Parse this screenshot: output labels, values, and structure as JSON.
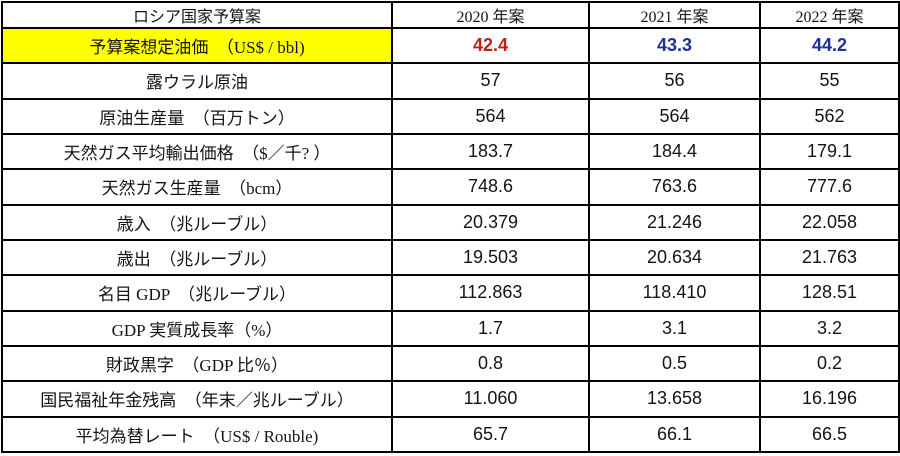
{
  "colors": {
    "highlight": "#ffff00",
    "red": "#c02018",
    "blue": "#1f2f9b",
    "border": "#000000",
    "text": "#141414"
  },
  "table": {
    "header": {
      "label": "ロシア国家予算案",
      "col_2020": "2020 年案",
      "col_2021": "2021 年案",
      "col_2022": "2022 年案"
    },
    "rows": [
      {
        "label": "予算案想定油価　（US$ / bbl)",
        "values": [
          "42.4",
          "43.3",
          "44.2"
        ],
        "highlight": true
      },
      {
        "label": "露ウラル原油",
        "values": [
          "57",
          "56",
          "55"
        ]
      },
      {
        "label": "原油生産量　（百万トン）",
        "values": [
          "564",
          "564",
          "562"
        ]
      },
      {
        "label": "天然ガス平均輸出価格　（$／千? ）",
        "values": [
          "183.7",
          "184.4",
          "179.1"
        ]
      },
      {
        "label": "天然ガス生産量　（bcm）",
        "values": [
          "748.6",
          "763.6",
          "777.6"
        ]
      },
      {
        "label": "歳入　（兆ルーブル）",
        "values": [
          "20.379",
          "21.246",
          "22.058"
        ]
      },
      {
        "label": "歳出　（兆ルーブル）",
        "values": [
          "19.503",
          "20.634",
          "21.763"
        ]
      },
      {
        "label": "名目 GDP　（兆ルーブル）",
        "values": [
          "112.863",
          "118.410",
          "128.51"
        ]
      },
      {
        "label": "GDP 実質成長率（%）",
        "values": [
          "1.7",
          "3.1",
          "3.2"
        ]
      },
      {
        "label": "財政黒字　（GDP 比％）",
        "values": [
          "0.8",
          "0.5",
          "0.2"
        ]
      },
      {
        "label": "国民福祉年金残高　（年末／兆ルーブル）",
        "values": [
          "11.060",
          "13.658",
          "16.196"
        ]
      },
      {
        "label": "平均為替レート　（US$ / Rouble)",
        "values": [
          "65.7",
          "66.1",
          "66.5"
        ]
      }
    ]
  },
  "chart_data": {
    "type": "table",
    "title": "ロシア国家予算案",
    "columns": [
      "ロシア国家予算案",
      "2020 年案",
      "2021 年案",
      "2022 年案"
    ],
    "rows": [
      {
        "label": "予算案想定油価　（US$ / bbl)",
        "2020": 42.4,
        "2021": 43.3,
        "2022": 44.2
      },
      {
        "label": "露ウラル原油",
        "2020": 57,
        "2021": 56,
        "2022": 55
      },
      {
        "label": "原油生産量　（百万トン）",
        "2020": 564,
        "2021": 564,
        "2022": 562
      },
      {
        "label": "天然ガス平均輸出価格　（$／千? ）",
        "2020": 183.7,
        "2021": 184.4,
        "2022": 179.1
      },
      {
        "label": "天然ガス生産量　（bcm）",
        "2020": 748.6,
        "2021": 763.6,
        "2022": 777.6
      },
      {
        "label": "歳入　（兆ルーブル）",
        "2020": 20.379,
        "2021": 21.246,
        "2022": 22.058
      },
      {
        "label": "歳出　（兆ルーブル）",
        "2020": 19.503,
        "2021": 20.634,
        "2022": 21.763
      },
      {
        "label": "名目 GDP　（兆ルーブル）",
        "2020": 112.863,
        "2021": 118.41,
        "2022": 128.51
      },
      {
        "label": "GDP 実質成長率（%）",
        "2020": 1.7,
        "2021": 3.1,
        "2022": 3.2
      },
      {
        "label": "財政黒字　（GDP 比％）",
        "2020": 0.8,
        "2021": 0.5,
        "2022": 0.2
      },
      {
        "label": "国民福祉年金残高　（年末／兆ルーブル）",
        "2020": 11.06,
        "2021": 13.658,
        "2022": 16.196
      },
      {
        "label": "平均為替レート　（US$ / Rouble)",
        "2020": 65.7,
        "2021": 66.1,
        "2022": 66.5
      }
    ],
    "notes": "Row 予算案想定油価 is highlighted yellow; its 2020 value is red, 2021 and 2022 values are blue (bold)."
  }
}
